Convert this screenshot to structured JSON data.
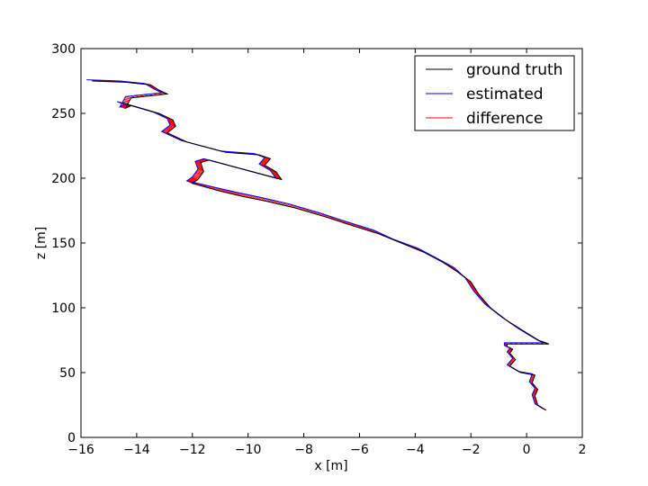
{
  "chart_data": {
    "type": "line",
    "title": "",
    "xlabel": "x [m]",
    "ylabel": "z [m]",
    "xlim": [
      -16,
      2
    ],
    "ylim": [
      0,
      300
    ],
    "xticks": [
      -16,
      -14,
      -12,
      -10,
      -8,
      -6,
      -4,
      -2,
      0,
      2
    ],
    "yticks": [
      0,
      50,
      100,
      150,
      200,
      250,
      300
    ],
    "xtick_labels": [
      "−16",
      "−14",
      "−12",
      "−10",
      "−8",
      "−6",
      "−4",
      "−2",
      "0",
      "2"
    ],
    "ytick_labels": [
      "0",
      "50",
      "100",
      "150",
      "200",
      "250",
      "300"
    ],
    "grid": false,
    "legend_position": "top-right",
    "series": [
      {
        "name": "ground truth",
        "color": "#000000",
        "x": [
          0.7,
          0.4,
          0.3,
          0.4,
          0.2,
          0.3,
          -0.2,
          -0.6,
          -0.4,
          -0.6,
          -0.5,
          -0.7,
          -0.7,
          0.8,
          0.5,
          -0.1,
          -0.7,
          -1.3,
          -1.7,
          -2.0,
          -2.5,
          -3.0,
          -3.7,
          -4.5,
          -5.3,
          -6.2,
          -7.2,
          -8.3,
          -9.3,
          -10.2,
          -11.0,
          -12.0,
          -11.8,
          -11.6,
          -11.7,
          -11.4,
          -8.8,
          -9.0,
          -9.4,
          -9.2,
          -9.6,
          -10.8,
          -12.2,
          -12.9,
          -12.6,
          -12.7,
          -13.2,
          -14.0,
          -14.5,
          -14.2,
          -14.4,
          -14.2,
          -12.9,
          -13.2,
          -13.5,
          -14.4,
          -15.6
        ],
        "y": [
          21,
          25,
          32,
          37,
          42,
          48,
          50,
          55,
          60,
          65,
          68,
          70,
          72,
          72,
          74,
          82,
          90,
          100,
          110,
          120,
          128,
          135,
          143,
          150,
          157,
          163,
          170,
          177,
          182,
          186,
          190,
          196,
          199,
          205,
          212,
          214,
          199,
          205,
          210,
          215,
          218,
          220,
          228,
          235,
          240,
          245,
          250,
          255,
          258,
          256,
          254,
          262,
          265,
          268,
          272,
          274,
          275
        ]
      },
      {
        "name": "estimated",
        "color": "#0000ff",
        "x": [
          0.6,
          0.3,
          0.2,
          0.3,
          0.1,
          0.2,
          -0.3,
          -0.7,
          -0.5,
          -0.7,
          -0.6,
          -0.8,
          -0.8,
          0.7,
          0.4,
          -0.3,
          -0.9,
          -1.5,
          -1.9,
          -2.2,
          -2.6,
          -3.2,
          -3.9,
          -4.8,
          -5.5,
          -6.4,
          -7.4,
          -8.5,
          -9.5,
          -10.4,
          -11.2,
          -12.2,
          -12.0,
          -11.8,
          -11.9,
          -11.6,
          -9.0,
          -9.2,
          -9.6,
          -9.4,
          -9.8,
          -11.0,
          -12.4,
          -13.1,
          -12.8,
          -12.9,
          -13.4,
          -14.2,
          -14.7,
          -14.4,
          -14.6,
          -14.4,
          -13.1,
          -13.4,
          -13.7,
          -14.6,
          -15.8
        ],
        "y": [
          22,
          26,
          33,
          38,
          43,
          49,
          51,
          56,
          61,
          66,
          69,
          71,
          73,
          73,
          75,
          84,
          93,
          103,
          113,
          123,
          131,
          138,
          146,
          153,
          160,
          166,
          173,
          180,
          185,
          189,
          193,
          198,
          201,
          207,
          213,
          215,
          200,
          206,
          211,
          216,
          219,
          221,
          229,
          236,
          241,
          246,
          251,
          256,
          259,
          257,
          255,
          263,
          266,
          269,
          273,
          275,
          276
        ]
      },
      {
        "name": "difference",
        "color": "#ff0000",
        "x": [],
        "y": []
      }
    ]
  }
}
